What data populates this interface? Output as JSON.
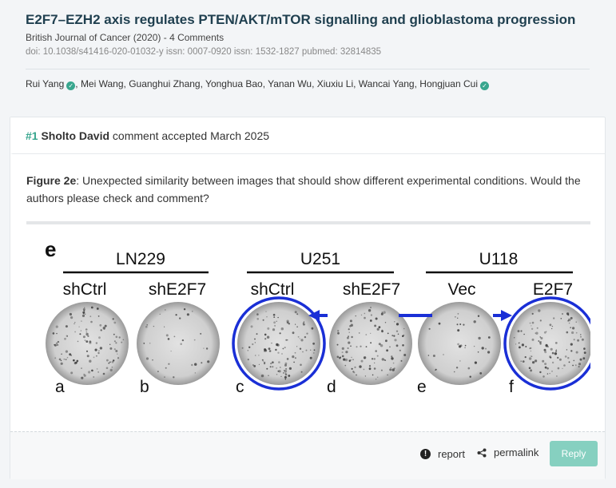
{
  "paper": {
    "title": "E2F7–EZH2 axis regulates PTEN/AKT/mTOR signalling and glioblastoma progression",
    "journal_line": "British Journal of Cancer (2020) - 4 Comments",
    "ids_line": "doi: 10.1038/s41416-020-01032-y issn: 0007-0920 issn: 1532-1827 pubmed: 32814835",
    "authors": [
      {
        "name": "Rui Yang",
        "verified": true
      },
      {
        "name": "Mei Wang",
        "verified": false
      },
      {
        "name": "Guanghui Zhang",
        "verified": false
      },
      {
        "name": "Yonghua Bao",
        "verified": false
      },
      {
        "name": "Yanan Wu",
        "verified": false
      },
      {
        "name": "Xiuxiu Li",
        "verified": false
      },
      {
        "name": "Wancai Yang",
        "verified": false
      },
      {
        "name": "Hongjuan Cui",
        "verified": true
      }
    ]
  },
  "comment": {
    "number": "#1",
    "author": "Sholto David",
    "status": "comment accepted March 2025",
    "figure_ref": "Figure 2e",
    "text": ": Unexpected similarity between images that should show different experimental conditions. Would the authors please check and comment?",
    "figure": {
      "panel_label": "e",
      "groups": [
        "LN229",
        "U251",
        "U118"
      ],
      "conditions": [
        "shCtrl",
        "shE2F7",
        "shCtrl",
        "shE2F7",
        "Vec",
        "E2F7"
      ],
      "letters": [
        "a",
        "b",
        "c",
        "d",
        "e",
        "f"
      ],
      "highlight_color": "#1a2fd6"
    },
    "actions": {
      "report": "report",
      "permalink": "permalink",
      "reply": "Reply"
    }
  },
  "colors": {
    "accent": "#38a68e",
    "title": "#1f3f4f",
    "reply_bg": "#86d0c0"
  }
}
